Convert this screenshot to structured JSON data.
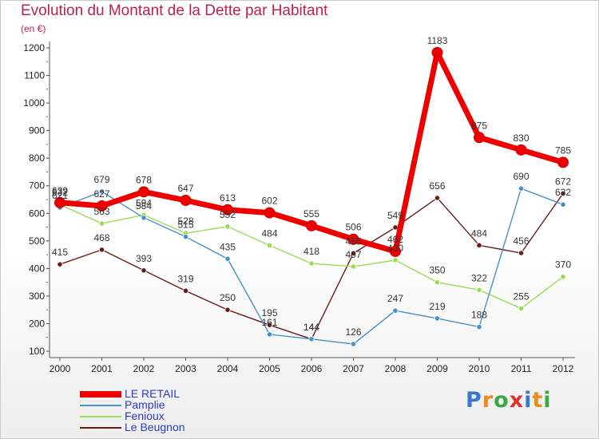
{
  "chart_data": {
    "type": "line",
    "title": "Evolution du Montant de la Dette par Habitant",
    "unit_label": "(en €)",
    "x": [
      "2000",
      "2001",
      "2002",
      "2003",
      "2004",
      "2005",
      "2006",
      "2007",
      "2008",
      "2009",
      "2010",
      "2011",
      "2012"
    ],
    "yticks": [
      "100",
      "200",
      "300",
      "400",
      "500",
      "600",
      "700",
      "800",
      "900",
      "1000",
      "1100",
      "1200"
    ],
    "ylim": [
      100,
      1200
    ],
    "grid": false,
    "legend_position": "bottom-left",
    "series": [
      {
        "name": "LE RETAIL",
        "color": "#ee0000",
        "values": [
          639,
          627,
          678,
          647,
          613,
          602,
          555,
          506,
          462,
          1183,
          875,
          830,
          785
        ],
        "labels": [
          "639",
          "627",
          "678",
          "647",
          "613",
          "602",
          "555",
          "506",
          "462",
          "1183",
          "875",
          "830",
          "785"
        ]
      },
      {
        "name": "Pamplie",
        "color": "#4a90c8",
        "values": [
          621,
          679,
          584,
          515,
          435,
          161,
          144,
          126,
          247,
          219,
          188,
          690,
          632
        ],
        "labels": [
          "621",
          "679",
          "584",
          "515",
          "435",
          "161",
          "144",
          "126",
          "247",
          "219",
          "188",
          "690",
          "632"
        ]
      },
      {
        "name": "Fenioux",
        "color": "#99dd55",
        "values": [
          632,
          563,
          594,
          528,
          552,
          484,
          418,
          407,
          430,
          350,
          322,
          255,
          370
        ],
        "labels": [
          "632",
          "563",
          "594",
          "528",
          "552",
          "484",
          "418",
          "407",
          "430",
          "350",
          "322",
          "255",
          "370"
        ]
      },
      {
        "name": "Le Beugnon",
        "color": "#6b1a1a",
        "values": [
          415,
          468,
          393,
          319,
          250,
          195,
          144,
          455,
          549,
          656,
          484,
          456,
          672
        ],
        "labels": [
          "415",
          "468",
          "393",
          "319",
          "250",
          "195",
          "144",
          "455",
          "549",
          "656",
          "484",
          "456",
          "672"
        ]
      }
    ]
  },
  "brand": {
    "letters": [
      "P",
      "r",
      "o",
      "x",
      "i",
      "t",
      "i"
    ],
    "colors": [
      "#3a78d0",
      "#f08a1c",
      "#39a845",
      "#e03030",
      "#3a78d0",
      "#f08a1c",
      "#39a845"
    ]
  }
}
